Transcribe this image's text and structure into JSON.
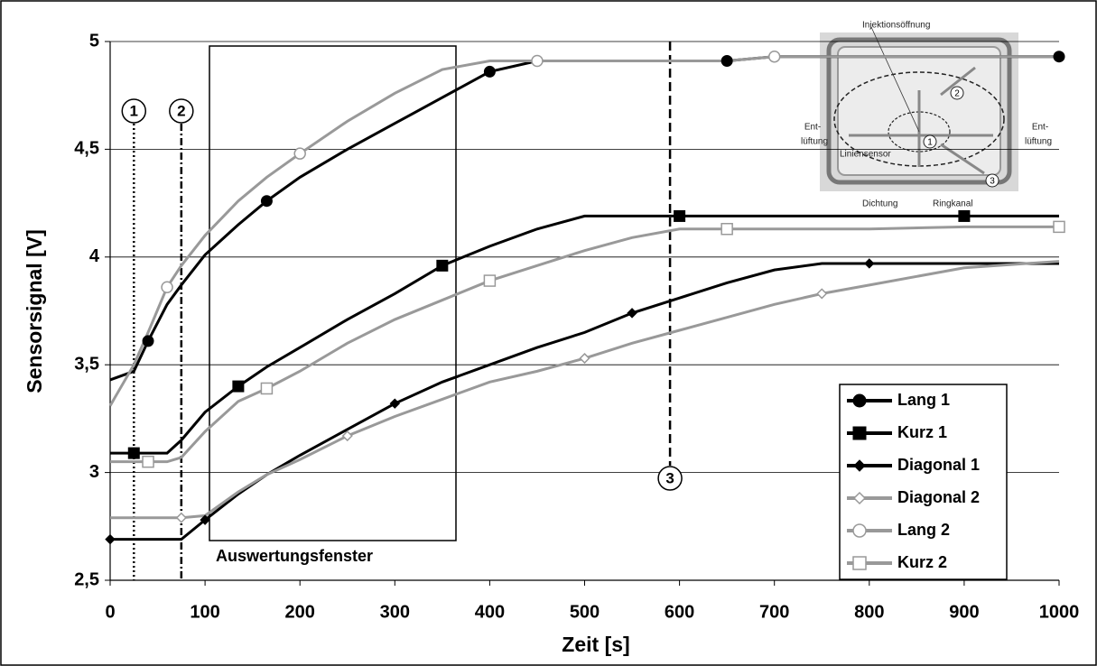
{
  "chart_data": {
    "type": "line",
    "x_label": "Zeit [s]",
    "y_label": "Sensorsignal [V]",
    "x": [
      0,
      25,
      40,
      60,
      75,
      100,
      135,
      165,
      200,
      250,
      300,
      350,
      400,
      450,
      500,
      550,
      600,
      650,
      700,
      750,
      800,
      900,
      1000
    ],
    "series": [
      {
        "name": "Lang 1",
        "color": "#000000",
        "marker": "circle",
        "filled": true,
        "values": [
          3.43,
          3.47,
          3.61,
          3.78,
          3.87,
          4.01,
          4.15,
          4.26,
          4.37,
          4.5,
          4.62,
          4.74,
          4.86,
          4.91,
          4.91,
          4.91,
          4.91,
          4.91,
          4.93,
          4.93,
          4.93,
          4.93,
          4.93
        ]
      },
      {
        "name": "Kurz 1",
        "color": "#000000",
        "marker": "square",
        "filled": true,
        "values": [
          3.09,
          3.09,
          3.09,
          3.09,
          3.15,
          3.28,
          3.4,
          3.49,
          3.58,
          3.71,
          3.83,
          3.96,
          4.05,
          4.13,
          4.19,
          4.19,
          4.19,
          4.19,
          4.19,
          4.19,
          4.19,
          4.19,
          4.19
        ]
      },
      {
        "name": "Diagonal 1",
        "color": "#000000",
        "marker": "diamond",
        "filled": true,
        "values": [
          2.69,
          2.69,
          2.69,
          2.69,
          2.69,
          2.78,
          2.9,
          2.99,
          3.08,
          3.2,
          3.32,
          3.42,
          3.5,
          3.58,
          3.65,
          3.74,
          3.81,
          3.88,
          3.94,
          3.97,
          3.97,
          3.97,
          3.97
        ]
      },
      {
        "name": "Diagonal 2",
        "color": "#999999",
        "marker": "diamond",
        "filled": false,
        "values": [
          2.79,
          2.79,
          2.79,
          2.79,
          2.79,
          2.8,
          2.91,
          2.99,
          3.06,
          3.17,
          3.26,
          3.34,
          3.42,
          3.47,
          3.53,
          3.6,
          3.66,
          3.72,
          3.78,
          3.83,
          3.87,
          3.95,
          3.98
        ]
      },
      {
        "name": "Lang 2",
        "color": "#999999",
        "marker": "circle",
        "filled": false,
        "values": [
          3.31,
          3.5,
          3.65,
          3.86,
          3.96,
          4.1,
          4.26,
          4.37,
          4.48,
          4.63,
          4.76,
          4.87,
          4.91,
          4.91,
          4.91,
          4.91,
          4.91,
          4.91,
          4.93,
          4.93,
          4.93,
          4.93,
          4.93
        ]
      },
      {
        "name": "Kurz 2",
        "color": "#999999",
        "marker": "square",
        "filled": false,
        "values": [
          3.05,
          3.05,
          3.05,
          3.05,
          3.07,
          3.19,
          3.33,
          3.39,
          3.47,
          3.6,
          3.71,
          3.8,
          3.89,
          3.96,
          4.03,
          4.09,
          4.13,
          4.13,
          4.13,
          4.13,
          4.13,
          4.14,
          4.14
        ]
      }
    ],
    "xlim": [
      0,
      1000
    ],
    "xticks": [
      0,
      100,
      200,
      300,
      400,
      500,
      600,
      700,
      800,
      900,
      1000
    ],
    "ylim": [
      2.5,
      5
    ],
    "yticks": [
      {
        "value": 2.5,
        "label": "2,5"
      },
      3,
      {
        "value": 3.5,
        "label": "3,5"
      },
      4,
      {
        "value": 4.5,
        "label": "4,5"
      },
      5
    ],
    "grid": true,
    "legend": "lower right",
    "annotations": {
      "marks": [
        "1",
        "2",
        "3"
      ],
      "window": "Auswertungsfenster"
    },
    "inset": {
      "labels": [
        "Injektionsöffnung",
        "Ent-",
        "lüftung",
        "Ent-",
        "lüftung",
        "Liniensensor",
        "Dichtung",
        "Ringkanal"
      ],
      "numbers": [
        "1",
        "2",
        "3"
      ]
    }
  }
}
